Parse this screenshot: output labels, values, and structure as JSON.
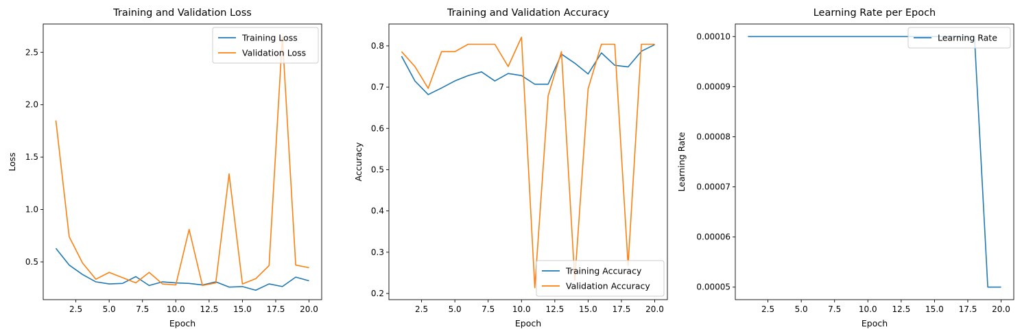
{
  "chart_data": [
    {
      "type": "line",
      "title": "Training and Validation Loss",
      "xlabel": "Epoch",
      "ylabel": "Loss",
      "xlim": [
        0.05,
        20.95
      ],
      "ylim": [
        0.14,
        2.77
      ],
      "xticks": [
        2.5,
        5.0,
        7.5,
        10.0,
        12.5,
        15.0,
        17.5,
        20.0
      ],
      "xtick_labels": [
        "2.5",
        "5.0",
        "7.5",
        "10.0",
        "12.5",
        "15.0",
        "17.5",
        "20.0"
      ],
      "yticks": [
        0.5,
        1.0,
        1.5,
        2.0,
        2.5
      ],
      "ytick_labels": [
        "0.5",
        "1.0",
        "1.5",
        "2.0",
        "2.5"
      ],
      "grid": false,
      "legend_position": "top-right",
      "x": [
        1,
        2,
        3,
        4,
        5,
        6,
        7,
        8,
        9,
        10,
        11,
        12,
        13,
        14,
        15,
        16,
        17,
        18,
        19,
        20
      ],
      "series": [
        {
          "name": "Training Loss",
          "color": "#1f77b4",
          "values": [
            0.63,
            0.47,
            0.38,
            0.31,
            0.29,
            0.295,
            0.36,
            0.275,
            0.31,
            0.3,
            0.295,
            0.28,
            0.31,
            0.26,
            0.265,
            0.23,
            0.29,
            0.265,
            0.355,
            0.32
          ]
        },
        {
          "name": "Validation Loss",
          "color": "#ff7f0e",
          "values": [
            1.85,
            0.74,
            0.49,
            0.335,
            0.4,
            0.35,
            0.3,
            0.4,
            0.29,
            0.28,
            0.81,
            0.275,
            0.3,
            1.34,
            0.29,
            0.34,
            0.465,
            2.65,
            0.47,
            0.445
          ]
        }
      ]
    },
    {
      "type": "line",
      "title": "Training and Validation Accuracy",
      "xlabel": "Epoch",
      "ylabel": "Accuracy",
      "xlim": [
        0.05,
        20.95
      ],
      "ylim": [
        0.185,
        0.853
      ],
      "xticks": [
        2.5,
        5.0,
        7.5,
        10.0,
        12.5,
        15.0,
        17.5,
        20.0
      ],
      "xtick_labels": [
        "2.5",
        "5.0",
        "7.5",
        "10.0",
        "12.5",
        "15.0",
        "17.5",
        "20.0"
      ],
      "yticks": [
        0.2,
        0.3,
        0.4,
        0.5,
        0.6,
        0.7,
        0.8
      ],
      "ytick_labels": [
        "0.2",
        "0.3",
        "0.4",
        "0.5",
        "0.6",
        "0.7",
        "0.8"
      ],
      "grid": false,
      "legend_position": "bottom-right",
      "x": [
        1,
        2,
        3,
        4,
        5,
        6,
        7,
        8,
        9,
        10,
        11,
        12,
        13,
        14,
        15,
        16,
        17,
        18,
        19,
        20
      ],
      "series": [
        {
          "name": "Training Accuracy",
          "color": "#1f77b4",
          "values": [
            0.775,
            0.715,
            0.682,
            0.698,
            0.715,
            0.728,
            0.737,
            0.715,
            0.733,
            0.728,
            0.707,
            0.707,
            0.78,
            0.758,
            0.732,
            0.783,
            0.753,
            0.749,
            0.787,
            0.803
          ]
        },
        {
          "name": "Validation Accuracy",
          "color": "#ff7f0e",
          "values": [
            0.786,
            0.75,
            0.697,
            0.786,
            0.786,
            0.804,
            0.804,
            0.804,
            0.75,
            0.821,
            0.214,
            0.679,
            0.786,
            0.232,
            0.696,
            0.804,
            0.804,
            0.268,
            0.804,
            0.804
          ]
        }
      ]
    },
    {
      "type": "line",
      "title": "Learning Rate per Epoch",
      "xlabel": "Epoch",
      "ylabel": "Learning Rate",
      "xlim": [
        0.05,
        20.95
      ],
      "ylim": [
        4.75e-05,
        0.0001025
      ],
      "xticks": [
        2.5,
        5.0,
        7.5,
        10.0,
        12.5,
        15.0,
        17.5,
        20.0
      ],
      "xtick_labels": [
        "2.5",
        "5.0",
        "7.5",
        "10.0",
        "12.5",
        "15.0",
        "17.5",
        "20.0"
      ],
      "yticks": [
        5e-05,
        6e-05,
        7e-05,
        8e-05,
        9e-05,
        0.0001
      ],
      "ytick_labels": [
        "0.00005",
        "0.00006",
        "0.00007",
        "0.00008",
        "0.00009",
        "0.00010"
      ],
      "grid": false,
      "legend_position": "top-right",
      "x": [
        1,
        2,
        3,
        4,
        5,
        6,
        7,
        8,
        9,
        10,
        11,
        12,
        13,
        14,
        15,
        16,
        17,
        18,
        19,
        20
      ],
      "series": [
        {
          "name": "Learning Rate",
          "color": "#1f77b4",
          "values": [
            0.0001,
            0.0001,
            0.0001,
            0.0001,
            0.0001,
            0.0001,
            0.0001,
            0.0001,
            0.0001,
            0.0001,
            0.0001,
            0.0001,
            0.0001,
            0.0001,
            0.0001,
            0.0001,
            0.0001,
            0.0001,
            5e-05,
            5e-05
          ]
        }
      ]
    }
  ]
}
